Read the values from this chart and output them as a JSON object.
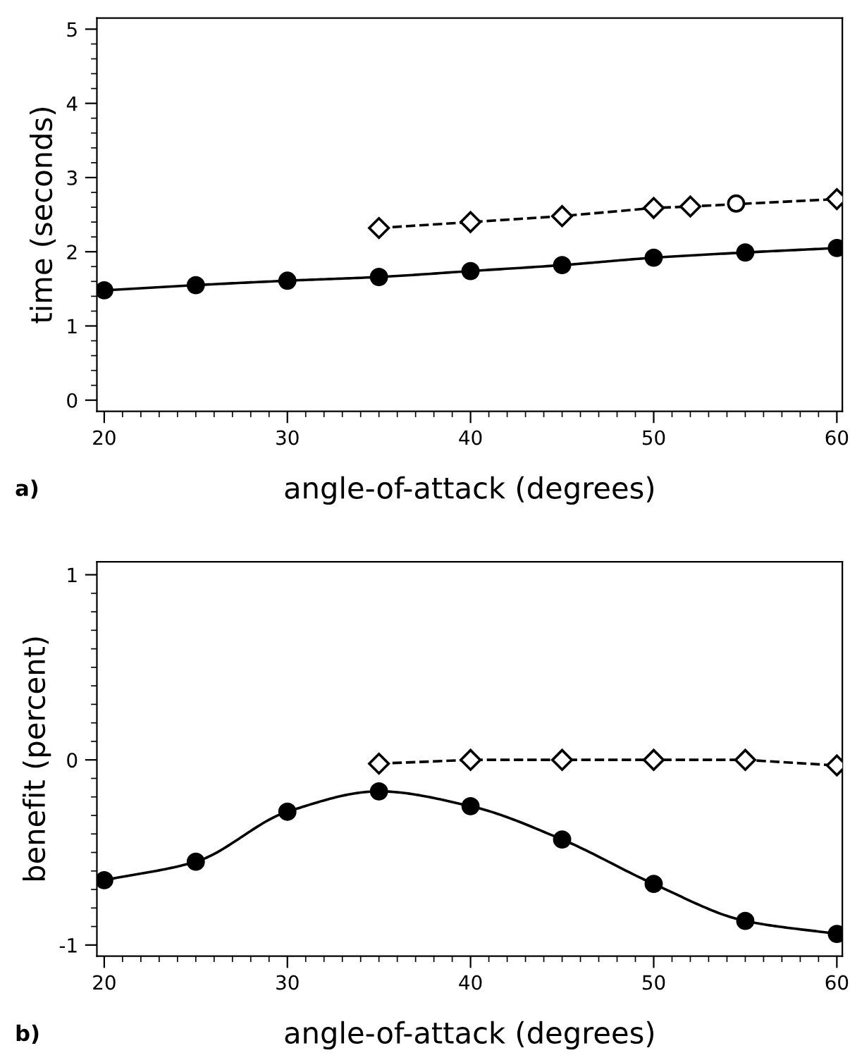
{
  "chart_data": [
    {
      "type": "line",
      "xlabel": "angle-of-attack (degrees)",
      "ylabel": "time (seconds)",
      "xlim": [
        19.6,
        60.3
      ],
      "ylim": [
        -0.15,
        5.15
      ],
      "xticks": [
        20,
        30,
        40,
        50,
        60
      ],
      "yticks": [
        0,
        1,
        2,
        3,
        4,
        5
      ],
      "grid": false,
      "legend": false,
      "annotations": [
        "a)"
      ],
      "series": [
        {
          "color": "#000000",
          "marker": "circle",
          "line_style": "solid",
          "x": [
            20,
            25,
            30,
            35,
            40,
            45,
            50,
            55,
            60
          ],
          "values": [
            1.48,
            1.55,
            1.61,
            1.66,
            1.74,
            1.82,
            1.92,
            1.99,
            2.05
          ]
        },
        {
          "color": "#000000",
          "marker": "diamond",
          "line_style": "dashed",
          "x": [
            35,
            40,
            45,
            50,
            52,
            60
          ],
          "values": [
            2.32,
            2.4,
            2.48,
            2.59,
            2.61,
            2.71
          ]
        },
        {
          "type": "scatter",
          "color": "#000000",
          "marker": "circle",
          "x": [
            54.5
          ],
          "values": [
            2.65
          ]
        }
      ]
    },
    {
      "type": "line",
      "xlabel": "angle-of-attack (degrees)",
      "ylabel": "benefit (percent)",
      "xlim": [
        19.6,
        60.3
      ],
      "ylim": [
        -1.06,
        1.07
      ],
      "xticks": [
        20,
        30,
        40,
        50,
        60
      ],
      "yticks": [
        -1,
        0,
        1
      ],
      "grid": false,
      "legend": false,
      "annotations": [
        "b)"
      ],
      "series": [
        {
          "color": "#000000",
          "marker": "circle",
          "line_style": "solid",
          "x": [
            20,
            25,
            30,
            35,
            40,
            45,
            50,
            55,
            60
          ],
          "values": [
            -0.65,
            -0.55,
            -0.28,
            -0.17,
            -0.25,
            -0.43,
            -0.67,
            -0.87,
            -0.94
          ]
        },
        {
          "color": "#000000",
          "marker": "diamond",
          "line_style": "dashed",
          "x": [
            35,
            40,
            45,
            50,
            55,
            60
          ],
          "values": [
            -0.02,
            0.0,
            0.0,
            0.0,
            0.0,
            -0.03
          ]
        }
      ]
    }
  ]
}
